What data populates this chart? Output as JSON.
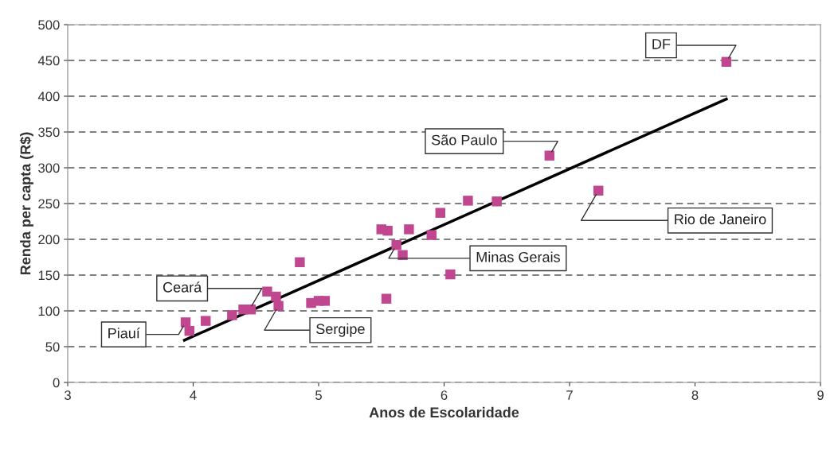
{
  "chart_data": {
    "type": "scatter",
    "xlabel": "Anos de Escolaridade",
    "ylabel": "Renda per capta (R$)",
    "xlim": [
      3,
      9
    ],
    "xticks": [
      3,
      4,
      5,
      6,
      7,
      8,
      9
    ],
    "ylim": [
      0,
      500
    ],
    "yticks": [
      0,
      50,
      100,
      150,
      200,
      250,
      300,
      350,
      400,
      450,
      500
    ],
    "grid": "y",
    "legend": false,
    "series": [
      {
        "marker": "square",
        "color": "#c0468f",
        "x": [
          3.94,
          3.97,
          4.1,
          4.31,
          4.4,
          4.46,
          4.59,
          4.66,
          4.68,
          4.85,
          4.94,
          5.0,
          5.05,
          5.5,
          5.55,
          5.54,
          5.62,
          5.67,
          5.72,
          5.9,
          5.97,
          6.05,
          6.19,
          6.42,
          6.84,
          7.23,
          8.25
        ],
        "values": [
          84,
          72,
          86,
          94,
          102,
          102,
          127,
          120,
          107,
          168,
          111,
          114,
          114,
          214,
          212,
          117,
          192,
          178,
          214,
          206,
          237,
          151,
          254,
          253,
          317,
          268,
          448
        ]
      },
      {
        "type": "line",
        "marker": "none",
        "color": "#000000",
        "x": [
          3.93,
          8.25
        ],
        "values": [
          59,
          396
        ]
      }
    ],
    "annotations": [
      {
        "text": "DF",
        "x": 8.25,
        "y": 448
      },
      {
        "text": "São Paulo",
        "x": 6.84,
        "y": 317
      },
      {
        "text": "Rio de Janeiro",
        "x": 7.23,
        "y": 268
      },
      {
        "text": "Minas Gerais",
        "x": 5.62,
        "y": 192
      },
      {
        "text": "Ceará",
        "x": 4.45,
        "y": 102
      },
      {
        "text": "Sergipe",
        "x": 4.68,
        "y": 107
      },
      {
        "text": "Piauí",
        "x": 3.94,
        "y": 84
      }
    ]
  }
}
